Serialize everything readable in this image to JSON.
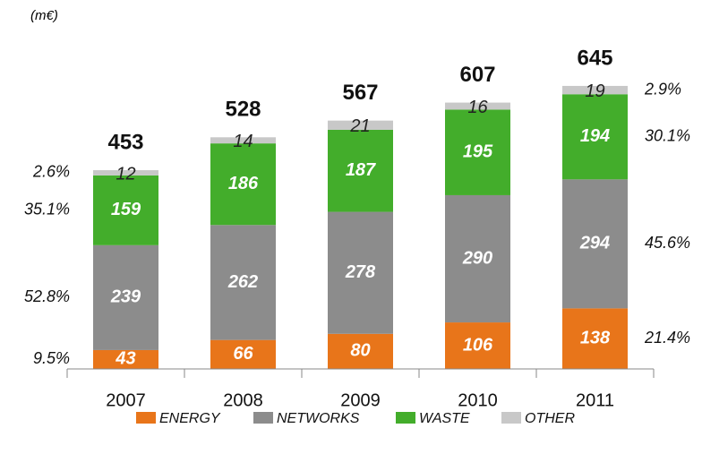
{
  "chart_data": {
    "type": "stacked_bar",
    "subtitle": "(m€)",
    "categories": [
      "2007",
      "2008",
      "2009",
      "2010",
      "2011"
    ],
    "series": [
      {
        "name": "ENERGY",
        "color": "#e8751a",
        "values": [
          43,
          66,
          80,
          106,
          138
        ]
      },
      {
        "name": "NETWORKS",
        "color": "#8c8c8c",
        "values": [
          239,
          262,
          278,
          290,
          294
        ]
      },
      {
        "name": "WASTE",
        "color": "#43ad2b",
        "values": [
          159,
          186,
          187,
          195,
          194
        ]
      },
      {
        "name": "OTHER",
        "color": "#c8c8c8",
        "values": [
          12,
          14,
          21,
          16,
          19
        ]
      }
    ],
    "totals": [
      453,
      528,
      567,
      607,
      645
    ],
    "shares_2007": {
      "values": [
        9.5,
        52.8,
        35.1,
        2.6
      ],
      "value_labels": [
        "9.5%",
        "52.8%",
        "35.1%",
        "2.6%"
      ]
    },
    "shares_2011": {
      "values": [
        21.4,
        45.6,
        30.1,
        2.9
      ],
      "value_labels": [
        "21.4%",
        "45.6%",
        "30.1%",
        "2.9%"
      ]
    },
    "ylim": [
      0,
      700
    ]
  }
}
